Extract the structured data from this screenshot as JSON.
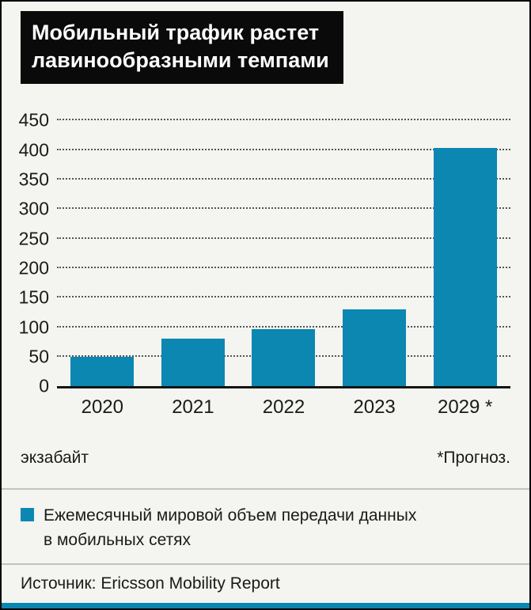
{
  "page": {
    "title_line1": "Мобильный трафик растет",
    "title_line2": "лавинообразными темпами",
    "units_label": "экзабайт",
    "forecast_note": "*Прогноз.",
    "legend_line1": "Ежемесячный мировой объем передачи данных",
    "legend_line2": "в мобильных сетях",
    "source": "Источник: Ericsson Mobility Report"
  },
  "colors": {
    "bar": "#0b87b2",
    "accent": "#0b87b2",
    "title_bg": "#0a0a0a",
    "background": "#f4f4f0",
    "gridline": "#545454"
  },
  "chart_data": {
    "type": "bar",
    "categories": [
      "2020",
      "2021",
      "2022",
      "2023",
      "2029 *"
    ],
    "values": [
      50,
      80,
      97,
      130,
      404
    ],
    "title": "Мобильный трафик растет лавинообразными темпами",
    "xlabel": "",
    "ylabel": "экзабайт",
    "ylim": [
      0,
      450
    ],
    "ytick_step": 50,
    "grid": "dotted-horizontal",
    "legend": [
      "Ежемесячный мировой объем передачи данных в мобильных сетях"
    ],
    "legend_position": "bottom",
    "footnote": "*Прогноз.",
    "source": "Источник: Ericsson Mobility Report"
  }
}
